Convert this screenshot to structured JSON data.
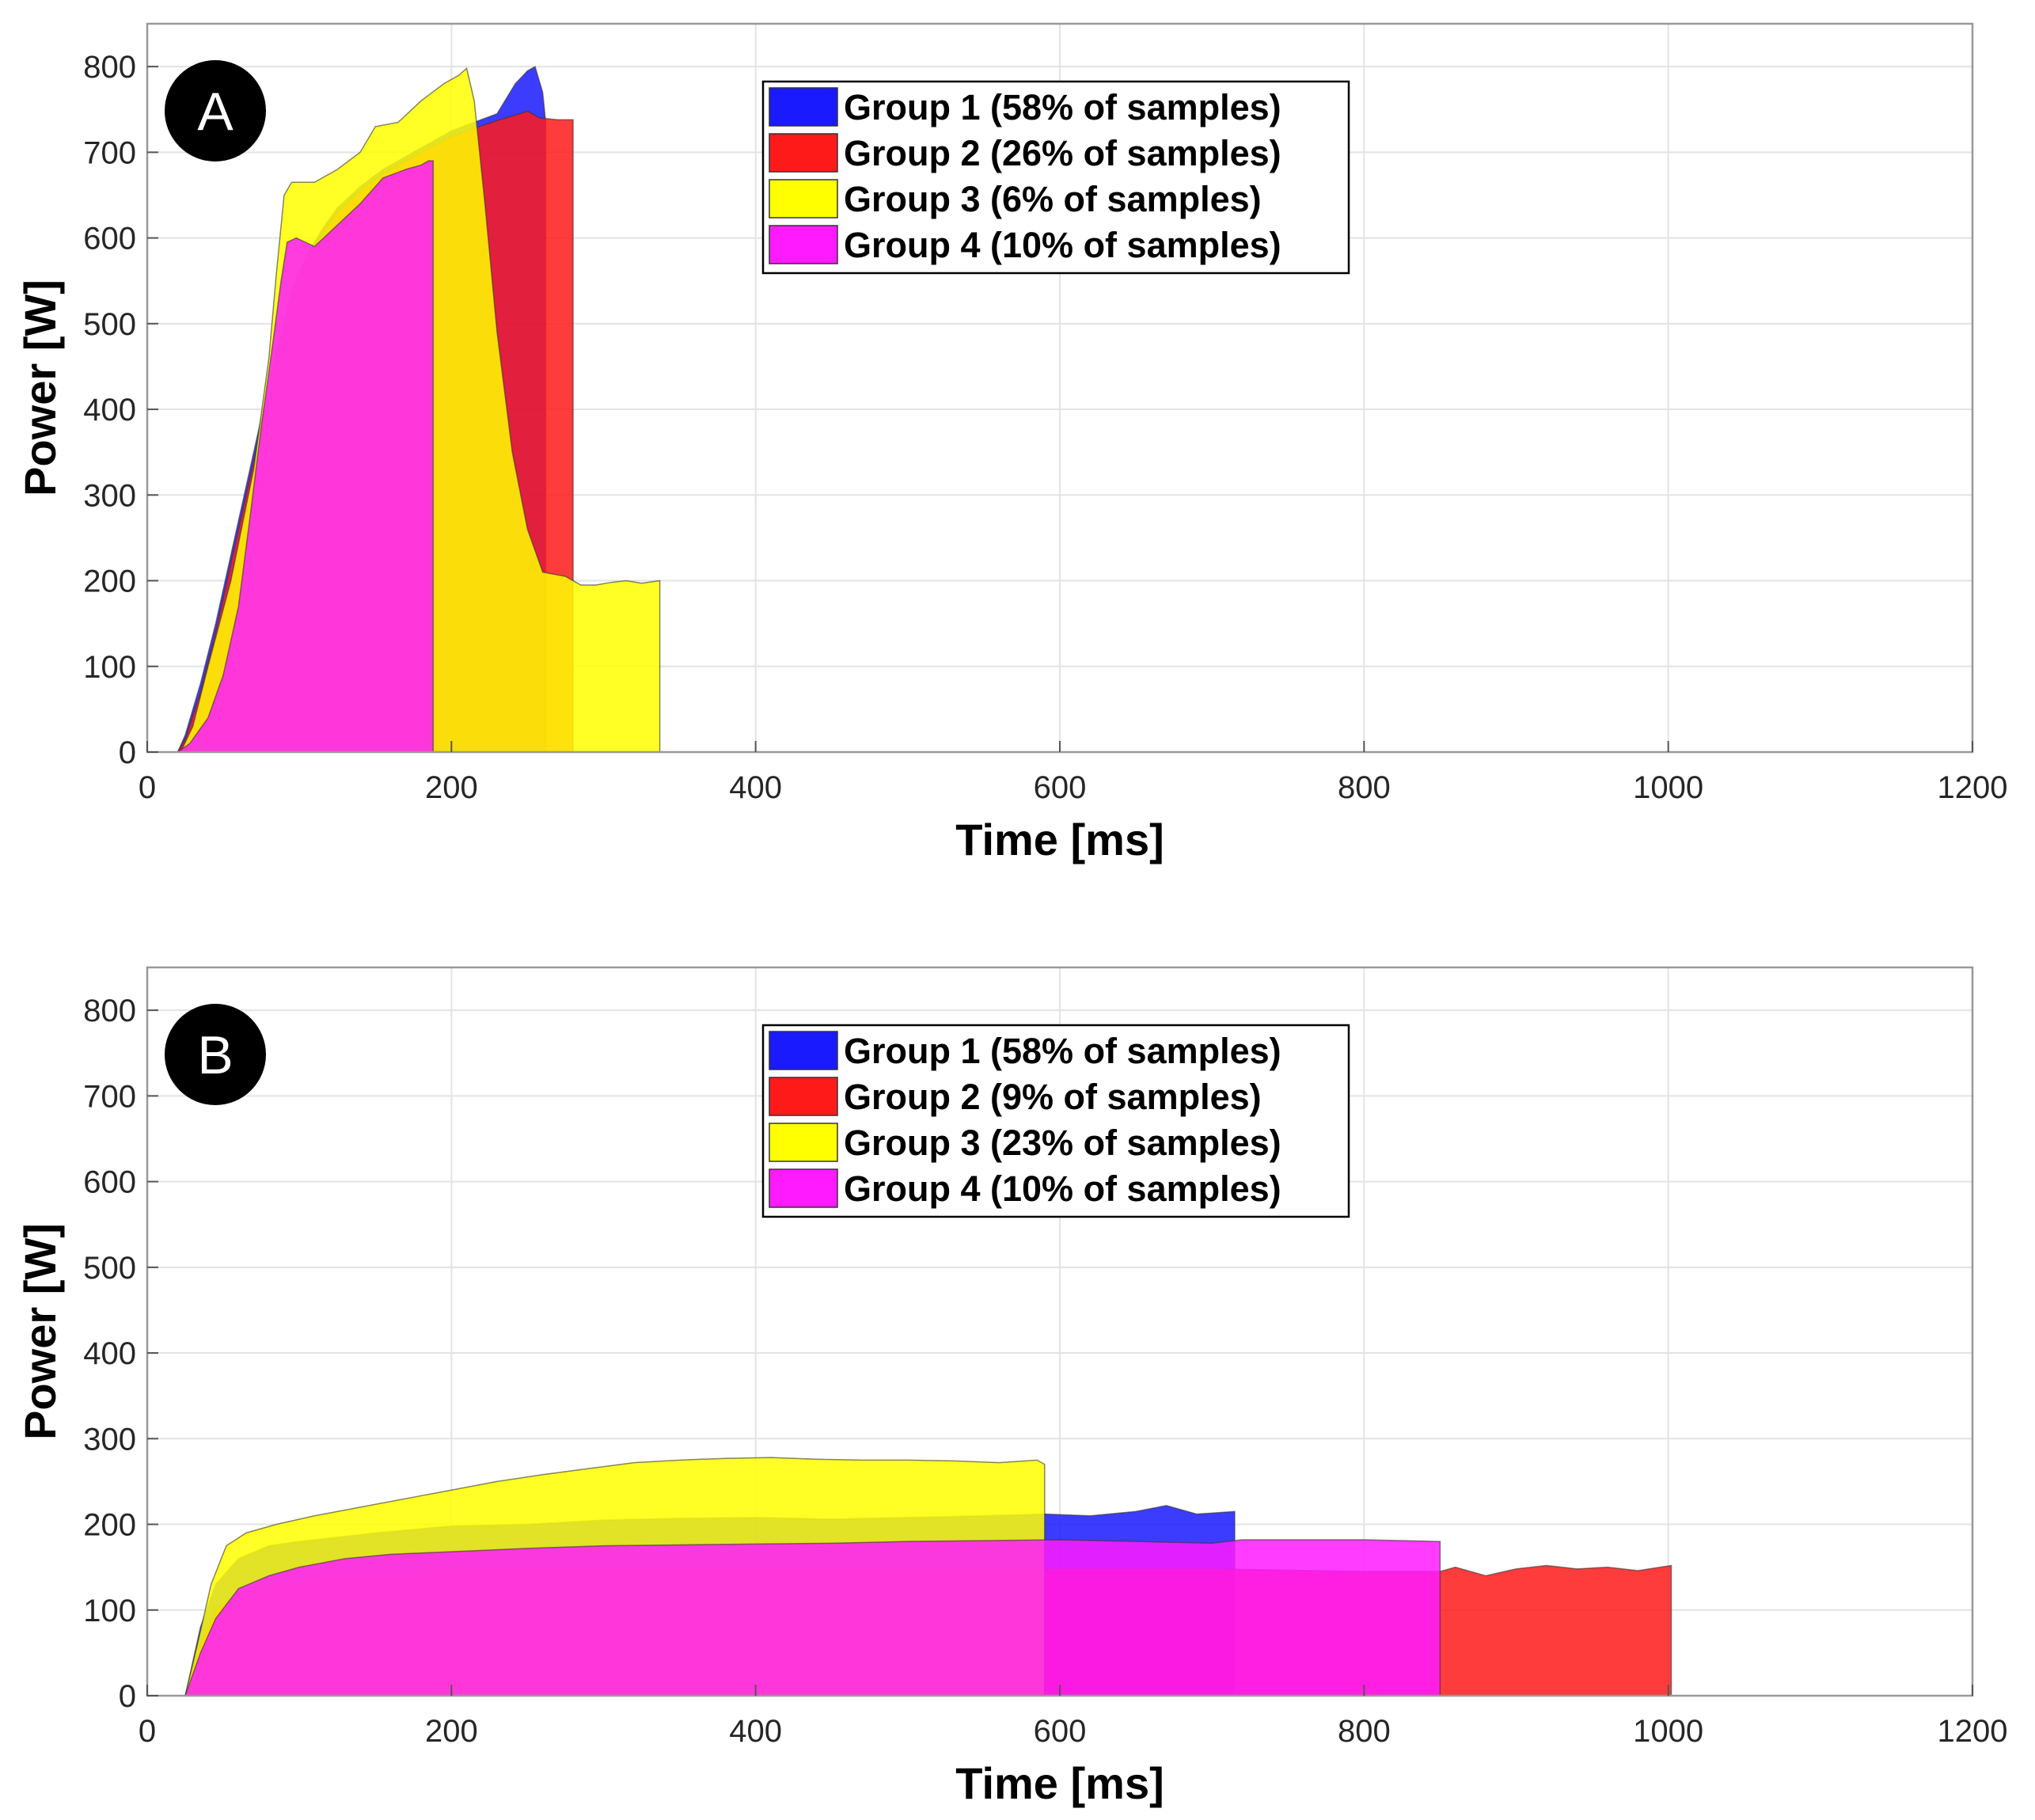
{
  "chart_data": [
    {
      "type": "area",
      "panel_label": "A",
      "xlabel": "Time [ms]",
      "ylabel": "Power [W]",
      "xlim": [
        0,
        1200
      ],
      "ylim": [
        0,
        850
      ],
      "x_ticks": [
        0,
        200,
        400,
        600,
        800,
        1000,
        1200
      ],
      "y_ticks": [
        0,
        100,
        200,
        300,
        400,
        500,
        600,
        700,
        800
      ],
      "grid": true,
      "legend_position": "top-center",
      "series": [
        {
          "name": "Group 1 (58% of samples)",
          "color": "#1a1aff",
          "points": [
            [
              15,
              0
            ],
            [
              20,
              0
            ],
            [
              25,
              20
            ],
            [
              35,
              80
            ],
            [
              45,
              150
            ],
            [
              55,
              230
            ],
            [
              65,
              310
            ],
            [
              75,
              390
            ],
            [
              85,
              470
            ],
            [
              95,
              540
            ],
            [
              105,
              580
            ],
            [
              115,
              610
            ],
            [
              125,
              635
            ],
            [
              140,
              660
            ],
            [
              155,
              680
            ],
            [
              170,
              695
            ],
            [
              185,
              710
            ],
            [
              200,
              725
            ],
            [
              215,
              735
            ],
            [
              230,
              745
            ],
            [
              242,
              780
            ],
            [
              250,
              795
            ],
            [
              255,
              800
            ],
            [
              260,
              770
            ],
            [
              262,
              735
            ]
          ]
        },
        {
          "name": "Group 2 (26% of samples)",
          "color": "#ff1a1a",
          "points": [
            [
              15,
              0
            ],
            [
              20,
              0
            ],
            [
              25,
              15
            ],
            [
              35,
              70
            ],
            [
              45,
              140
            ],
            [
              55,
              220
            ],
            [
              65,
              300
            ],
            [
              75,
              380
            ],
            [
              85,
              460
            ],
            [
              95,
              530
            ],
            [
              105,
              575
            ],
            [
              115,
              605
            ],
            [
              125,
              630
            ],
            [
              140,
              655
            ],
            [
              155,
              675
            ],
            [
              170,
              690
            ],
            [
              185,
              705
            ],
            [
              200,
              718
            ],
            [
              215,
              728
            ],
            [
              230,
              737
            ],
            [
              245,
              745
            ],
            [
              250,
              748
            ],
            [
              258,
              740
            ],
            [
              270,
              738
            ],
            [
              280,
              738
            ]
          ]
        },
        {
          "name": "Group 3 (6% of samples)",
          "color": "#ffff00",
          "points": [
            [
              15,
              0
            ],
            [
              22,
              0
            ],
            [
              30,
              30
            ],
            [
              40,
              100
            ],
            [
              55,
              200
            ],
            [
              70,
              330
            ],
            [
              80,
              460
            ],
            [
              85,
              560
            ],
            [
              90,
              650
            ],
            [
              95,
              665
            ],
            [
              110,
              665
            ],
            [
              125,
              680
            ],
            [
              140,
              700
            ],
            [
              150,
              730
            ],
            [
              165,
              735
            ],
            [
              180,
              760
            ],
            [
              195,
              780
            ],
            [
              205,
              790
            ],
            [
              210,
              798
            ],
            [
              215,
              760
            ],
            [
              222,
              640
            ],
            [
              230,
              490
            ],
            [
              240,
              350
            ],
            [
              250,
              260
            ],
            [
              260,
              210
            ],
            [
              275,
              205
            ],
            [
              285,
              195
            ],
            [
              295,
              195
            ],
            [
              305,
              198
            ],
            [
              315,
              200
            ],
            [
              325,
              197
            ],
            [
              337,
              200
            ]
          ]
        },
        {
          "name": "Group 4 (10% of samples)",
          "color": "#ff1aff",
          "points": [
            [
              15,
              0
            ],
            [
              20,
              0
            ],
            [
              28,
              10
            ],
            [
              40,
              40
            ],
            [
              50,
              90
            ],
            [
              60,
              170
            ],
            [
              68,
              280
            ],
            [
              75,
              380
            ],
            [
              82,
              470
            ],
            [
              88,
              550
            ],
            [
              92,
              595
            ],
            [
              98,
              600
            ],
            [
              110,
              590
            ],
            [
              125,
              615
            ],
            [
              140,
              640
            ],
            [
              155,
              670
            ],
            [
              170,
              680
            ],
            [
              180,
              685
            ],
            [
              185,
              690
            ],
            [
              188,
              690
            ]
          ]
        }
      ],
      "legend": [
        {
          "label": "Group 1 (58% of samples)",
          "color": "#1a1aff"
        },
        {
          "label": "Group 2 (26% of samples)",
          "color": "#ff1a1a"
        },
        {
          "label": "Group 3 (6% of samples)",
          "color": "#ffff00"
        },
        {
          "label": "Group 4 (10% of samples)",
          "color": "#ff1aff"
        }
      ]
    },
    {
      "type": "area",
      "panel_label": "B",
      "xlabel": "Time [ms]",
      "ylabel": "Power [W]",
      "xlim": [
        0,
        1200
      ],
      "ylim": [
        0,
        850
      ],
      "x_ticks": [
        0,
        200,
        400,
        600,
        800,
        1000,
        1200
      ],
      "y_ticks": [
        0,
        100,
        200,
        300,
        400,
        500,
        600,
        700,
        800
      ],
      "grid": true,
      "legend_position": "top-center",
      "series": [
        {
          "name": "Group 1 (58% of samples)",
          "color": "#1a1aff",
          "points": [
            [
              20,
              0
            ],
            [
              25,
              0
            ],
            [
              35,
              80
            ],
            [
              45,
              130
            ],
            [
              60,
              160
            ],
            [
              80,
              175
            ],
            [
              100,
              180
            ],
            [
              150,
              190
            ],
            [
              200,
              198
            ],
            [
              250,
              200
            ],
            [
              300,
              205
            ],
            [
              350,
              207
            ],
            [
              400,
              208
            ],
            [
              450,
              206
            ],
            [
              500,
              208
            ],
            [
              550,
              210
            ],
            [
              590,
              212
            ],
            [
              620,
              210
            ],
            [
              650,
              215
            ],
            [
              670,
              222
            ],
            [
              690,
              212
            ],
            [
              715,
              215
            ]
          ]
        },
        {
          "name": "Group 2 (9% of samples)",
          "color": "#ff1a1a",
          "points": [
            [
              20,
              0
            ],
            [
              25,
              0
            ],
            [
              35,
              60
            ],
            [
              45,
              100
            ],
            [
              60,
              120
            ],
            [
              80,
              130
            ],
            [
              120,
              140
            ],
            [
              200,
              148
            ],
            [
              300,
              150
            ],
            [
              400,
              150
            ],
            [
              500,
              148
            ],
            [
              600,
              148
            ],
            [
              700,
              148
            ],
            [
              800,
              145
            ],
            [
              850,
              145
            ],
            [
              860,
              150
            ],
            [
              880,
              140
            ],
            [
              900,
              148
            ],
            [
              920,
              152
            ],
            [
              940,
              148
            ],
            [
              960,
              150
            ],
            [
              980,
              146
            ],
            [
              1002,
              152
            ]
          ]
        },
        {
          "name": "Group 3 (23% of samples)",
          "color": "#ffff00",
          "points": [
            [
              20,
              0
            ],
            [
              25,
              0
            ],
            [
              33,
              60
            ],
            [
              42,
              130
            ],
            [
              52,
              175
            ],
            [
              65,
              190
            ],
            [
              85,
              200
            ],
            [
              110,
              210
            ],
            [
              140,
              220
            ],
            [
              170,
              230
            ],
            [
              200,
              240
            ],
            [
              230,
              250
            ],
            [
              260,
              258
            ],
            [
              290,
              265
            ],
            [
              320,
              272
            ],
            [
              350,
              275
            ],
            [
              380,
              277
            ],
            [
              410,
              278
            ],
            [
              440,
              276
            ],
            [
              470,
              275
            ],
            [
              500,
              275
            ],
            [
              530,
              274
            ],
            [
              560,
              272
            ],
            [
              585,
              275
            ],
            [
              590,
              270
            ]
          ]
        },
        {
          "name": "Group 4 (10% of samples)",
          "color": "#ff1aff",
          "points": [
            [
              20,
              0
            ],
            [
              25,
              0
            ],
            [
              35,
              50
            ],
            [
              45,
              90
            ],
            [
              60,
              125
            ],
            [
              80,
              140
            ],
            [
              100,
              150
            ],
            [
              130,
              160
            ],
            [
              160,
              165
            ],
            [
              200,
              168
            ],
            [
              250,
              172
            ],
            [
              300,
              175
            ],
            [
              350,
              176
            ],
            [
              400,
              177
            ],
            [
              450,
              178
            ],
            [
              500,
              180
            ],
            [
              550,
              181
            ],
            [
              600,
              182
            ],
            [
              650,
              180
            ],
            [
              700,
              178
            ],
            [
              720,
              182
            ],
            [
              750,
              182
            ],
            [
              800,
              182
            ],
            [
              850,
              180
            ]
          ]
        }
      ],
      "legend": [
        {
          "label": "Group 1 (58% of samples)",
          "color": "#1a1aff"
        },
        {
          "label": "Group 2 (9% of samples)",
          "color": "#ff1a1a"
        },
        {
          "label": "Group 3 (23% of samples)",
          "color": "#ffff00"
        },
        {
          "label": "Group 4 (10% of samples)",
          "color": "#ff1aff"
        }
      ]
    }
  ]
}
